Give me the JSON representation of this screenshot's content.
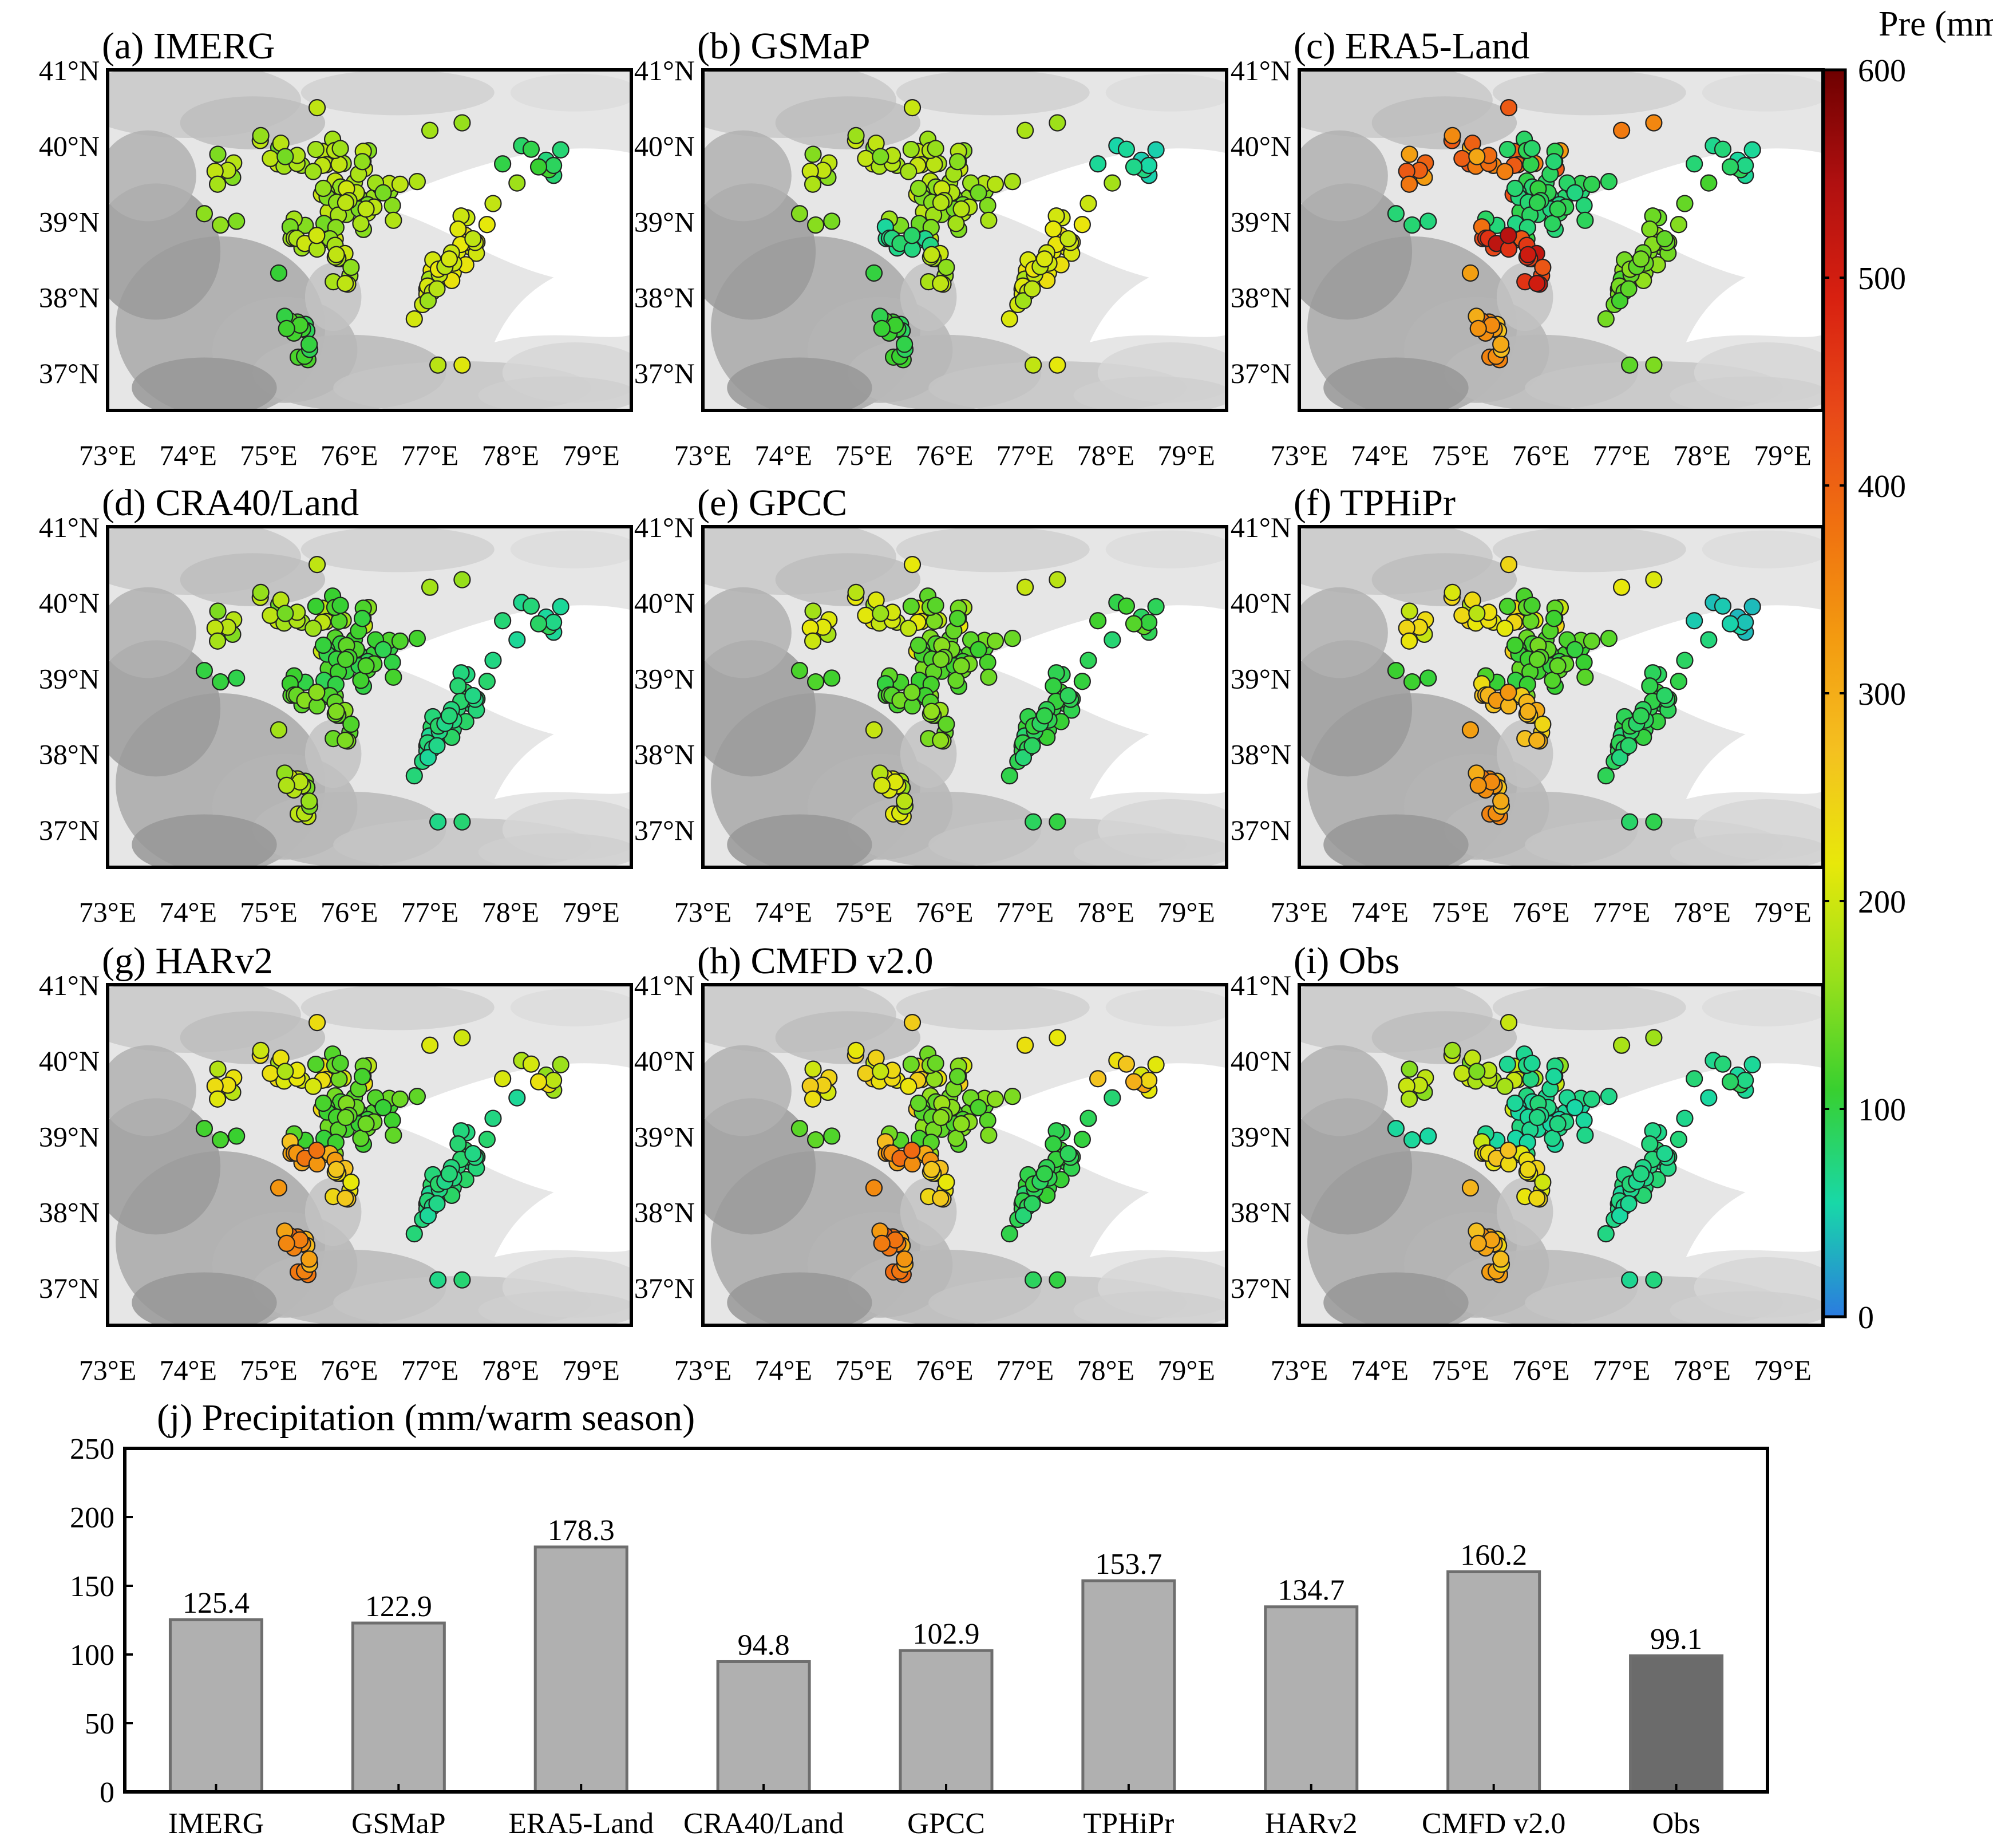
{
  "colorbar": {
    "title": "Pre (mm)",
    "ticks": [
      "0",
      "100",
      "200",
      "300",
      "400",
      "500",
      "600"
    ],
    "range": [
      0,
      600
    ],
    "colors": [
      "#2b7be0",
      "#18d8a8",
      "#38d030",
      "#9ae01a",
      "#e8e80a",
      "#f4c020",
      "#f39a10",
      "#f07010",
      "#e84818",
      "#d82010",
      "#b01010",
      "#6e0000"
    ]
  },
  "maps": {
    "lon_labels": [
      "73°E",
      "74°E",
      "75°E",
      "76°E",
      "77°E",
      "78°E",
      "79°E"
    ],
    "lat_labels": [
      "41°N",
      "40°N",
      "39°N",
      "38°N",
      "37°N"
    ],
    "lon_range": [
      73,
      79.5
    ],
    "lat_range": [
      36.5,
      41
    ],
    "panels": [
      {
        "label": "(a) IMERG",
        "base": [
          170,
          170,
          170,
          180,
          200,
          95,
          110
        ]
      },
      {
        "label": "(b) GSMaP",
        "base": [
          175,
          165,
          70,
          180,
          205,
          60,
          105
        ]
      },
      {
        "label": "(c) ERA5-Land",
        "base": [
          370,
          85,
          450,
          480,
          140,
          75,
          330
        ]
      },
      {
        "label": "(d) CRA40/Land",
        "base": [
          170,
          110,
          130,
          140,
          75,
          75,
          175
        ]
      },
      {
        "label": "(e) GPCC",
        "base": [
          195,
          130,
          120,
          150,
          95,
          110,
          200
        ]
      },
      {
        "label": "(f) TPHiPr",
        "base": [
          220,
          120,
          280,
          280,
          90,
          45,
          330
        ]
      },
      {
        "label": "(g) HARv2",
        "base": [
          210,
          125,
          320,
          250,
          75,
          200,
          345
        ]
      },
      {
        "label": "(h) CMFD v2.0",
        "base": [
          230,
          140,
          330,
          250,
          95,
          260,
          360
        ]
      },
      {
        "label": "(i) Obs",
        "base": [
          175,
          65,
          230,
          230,
          70,
          75,
          300
        ]
      }
    ]
  },
  "chart_data": {
    "type": "bar",
    "title": "(j) Precipitation (mm/warm season)",
    "categories": [
      "IMERG",
      "GSMaP",
      "ERA5-Land",
      "CRA40/Land",
      "GPCC",
      "TPHiPr",
      "HARv2",
      "CMFD v2.0",
      "Obs"
    ],
    "values": [
      125.4,
      122.9,
      178.3,
      94.8,
      102.9,
      153.7,
      134.7,
      160.2,
      99.1
    ],
    "value_labels": [
      "125.4",
      "122.9",
      "178.3",
      "94.8",
      "102.9",
      "153.7",
      "134.7",
      "160.2",
      "99.1"
    ],
    "ylim": [
      0,
      250
    ],
    "yticks": [
      "0",
      "50",
      "100",
      "150",
      "200",
      "250"
    ],
    "bar_color": "#b0b0b0",
    "highlight_color": "#6b6b6b",
    "highlight_category": "Obs",
    "xlabel": "",
    "ylabel": ""
  }
}
